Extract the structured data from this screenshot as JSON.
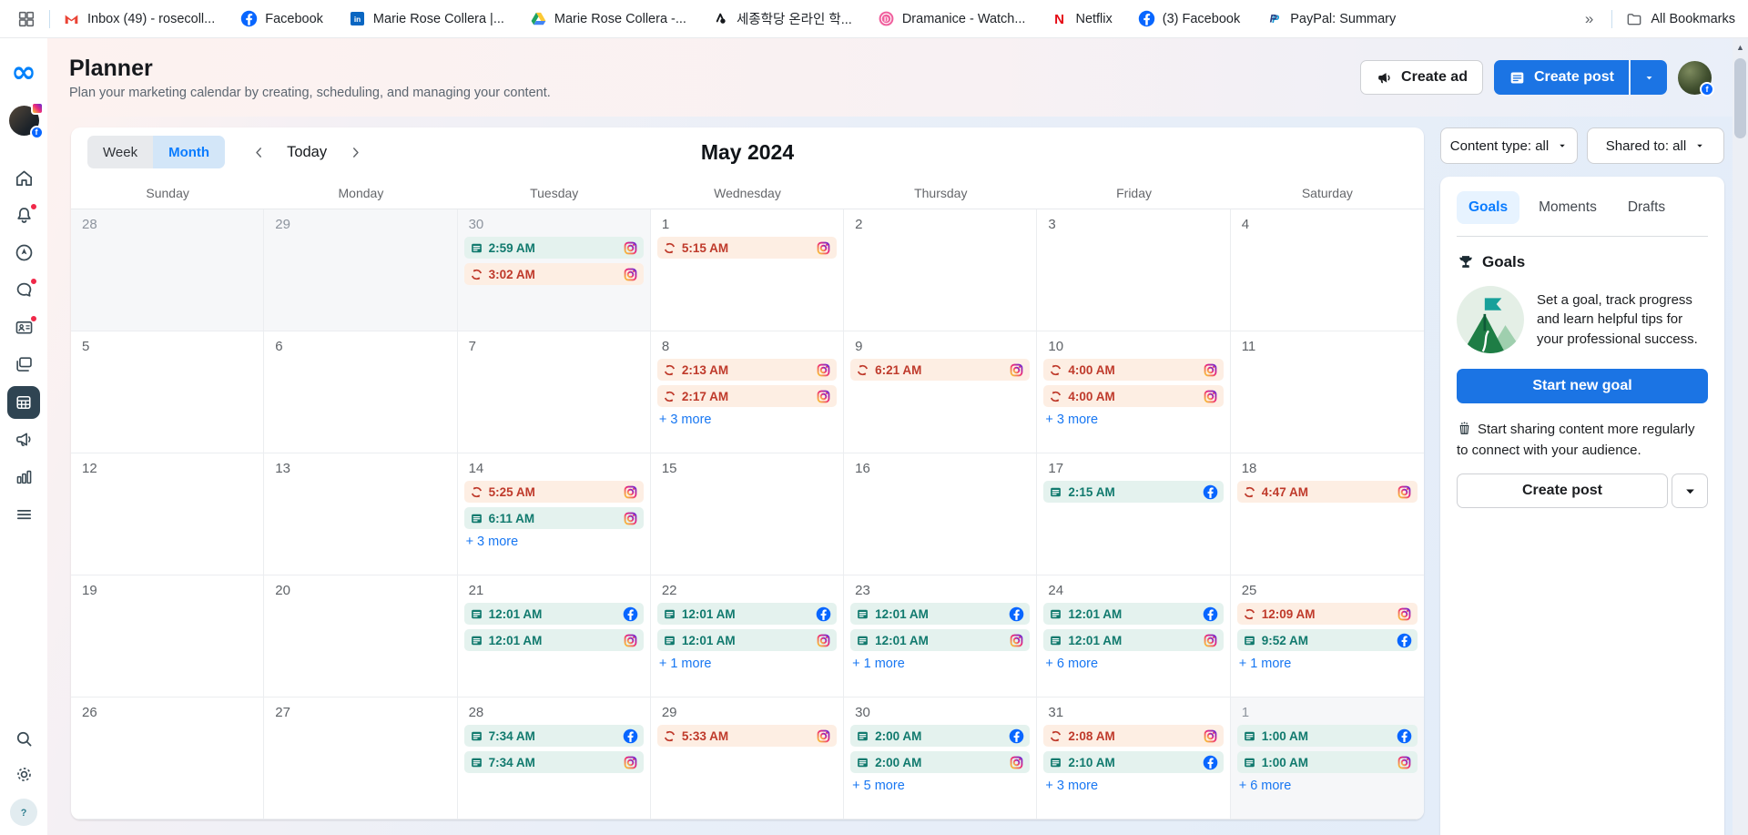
{
  "browser": {
    "bookmarks": [
      {
        "icon": "gmail",
        "label": "Inbox (49) - rosecoll..."
      },
      {
        "icon": "facebook",
        "label": "Facebook"
      },
      {
        "icon": "linkedin",
        "label": "Marie Rose Collera |..."
      },
      {
        "icon": "drive",
        "label": "Marie Rose Collera -..."
      },
      {
        "icon": "sejong",
        "label": "세종학당 온라인 학..."
      },
      {
        "icon": "dramanice",
        "label": "Dramanice - Watch..."
      },
      {
        "icon": "netflix",
        "label": "Netflix"
      },
      {
        "icon": "facebook",
        "label": "(3) Facebook"
      },
      {
        "icon": "paypal",
        "label": "PayPal: Summary"
      }
    ],
    "overflow_chevron": "»",
    "all_bookmarks_label": "All Bookmarks"
  },
  "sidebar": {
    "nav_icons": [
      {
        "icon": "home"
      },
      {
        "icon": "notifications",
        "badge": true
      },
      {
        "icon": "boost"
      },
      {
        "icon": "inbox-chat",
        "badge": true
      },
      {
        "icon": "leads",
        "badge": true
      },
      {
        "icon": "content"
      },
      {
        "icon": "planner",
        "active": true
      },
      {
        "icon": "ads"
      },
      {
        "icon": "insights"
      },
      {
        "icon": "all-tools"
      }
    ],
    "bottom_icons": [
      {
        "icon": "search"
      },
      {
        "icon": "settings"
      },
      {
        "icon": "help"
      }
    ]
  },
  "header": {
    "title": "Planner",
    "subtitle": "Plan your marketing calendar by creating, scheduling, and managing your content.",
    "create_ad_label": "Create ad",
    "create_post_label": "Create post"
  },
  "toolbar": {
    "week_label": "Week",
    "month_label": "Month",
    "today_label": "Today",
    "month_title": "May 2024",
    "content_type_filter": "Content type: all",
    "shared_to_filter": "Shared to: all"
  },
  "calendar": {
    "day_headers": [
      "Sunday",
      "Monday",
      "Tuesday",
      "Wednesday",
      "Thursday",
      "Friday",
      "Saturday"
    ],
    "weeks": [
      [
        {
          "date": "28",
          "out": true
        },
        {
          "date": "29",
          "out": true
        },
        {
          "date": "30",
          "out": true,
          "events": [
            {
              "time": "2:59 AM",
              "status": "published",
              "platform": "instagram"
            },
            {
              "time": "3:02 AM",
              "status": "scheduled",
              "platform": "instagram"
            }
          ]
        },
        {
          "date": "1",
          "events": [
            {
              "time": "5:15 AM",
              "status": "scheduled",
              "platform": "instagram"
            }
          ]
        },
        {
          "date": "2"
        },
        {
          "date": "3"
        },
        {
          "date": "4"
        }
      ],
      [
        {
          "date": "5"
        },
        {
          "date": "6"
        },
        {
          "date": "7"
        },
        {
          "date": "8",
          "events": [
            {
              "time": "2:13 AM",
              "status": "scheduled",
              "platform": "instagram"
            },
            {
              "time": "2:17 AM",
              "status": "scheduled",
              "platform": "instagram"
            }
          ],
          "more": "+ 3 more"
        },
        {
          "date": "9",
          "events": [
            {
              "time": "6:21 AM",
              "status": "scheduled",
              "platform": "instagram"
            }
          ]
        },
        {
          "date": "10",
          "events": [
            {
              "time": "4:00 AM",
              "status": "scheduled",
              "platform": "instagram"
            },
            {
              "time": "4:00 AM",
              "status": "scheduled",
              "platform": "instagram"
            }
          ],
          "more": "+ 3 more"
        },
        {
          "date": "11"
        }
      ],
      [
        {
          "date": "12"
        },
        {
          "date": "13"
        },
        {
          "date": "14",
          "events": [
            {
              "time": "5:25 AM",
              "status": "scheduled",
              "platform": "instagram"
            },
            {
              "time": "6:11 AM",
              "status": "published",
              "platform": "instagram"
            }
          ],
          "more": "+ 3 more"
        },
        {
          "date": "15"
        },
        {
          "date": "16"
        },
        {
          "date": "17",
          "events": [
            {
              "time": "2:15 AM",
              "status": "published",
              "platform": "facebook"
            }
          ]
        },
        {
          "date": "18",
          "events": [
            {
              "time": "4:47 AM",
              "status": "scheduled",
              "platform": "instagram"
            }
          ]
        }
      ],
      [
        {
          "date": "19"
        },
        {
          "date": "20"
        },
        {
          "date": "21",
          "events": [
            {
              "time": "12:01 AM",
              "status": "published",
              "platform": "facebook"
            },
            {
              "time": "12:01 AM",
              "status": "published",
              "platform": "instagram"
            }
          ]
        },
        {
          "date": "22",
          "events": [
            {
              "time": "12:01 AM",
              "status": "published",
              "platform": "facebook"
            },
            {
              "time": "12:01 AM",
              "status": "published",
              "platform": "instagram"
            }
          ],
          "more": "+ 1 more"
        },
        {
          "date": "23",
          "events": [
            {
              "time": "12:01 AM",
              "status": "published",
              "platform": "facebook"
            },
            {
              "time": "12:01 AM",
              "status": "published",
              "platform": "instagram"
            }
          ],
          "more": "+ 1 more"
        },
        {
          "date": "24",
          "events": [
            {
              "time": "12:01 AM",
              "status": "published",
              "platform": "facebook"
            },
            {
              "time": "12:01 AM",
              "status": "published",
              "platform": "instagram"
            }
          ],
          "more": "+ 6 more"
        },
        {
          "date": "25",
          "events": [
            {
              "time": "12:09 AM",
              "status": "scheduled",
              "platform": "instagram"
            },
            {
              "time": "9:52 AM",
              "status": "published",
              "platform": "facebook"
            }
          ],
          "more": "+ 1 more"
        }
      ],
      [
        {
          "date": "26"
        },
        {
          "date": "27"
        },
        {
          "date": "28",
          "events": [
            {
              "time": "7:34 AM",
              "status": "published",
              "platform": "facebook"
            },
            {
              "time": "7:34 AM",
              "status": "published",
              "platform": "instagram"
            }
          ]
        },
        {
          "date": "29",
          "events": [
            {
              "time": "5:33 AM",
              "status": "scheduled",
              "platform": "instagram"
            }
          ]
        },
        {
          "date": "30",
          "events": [
            {
              "time": "2:00 AM",
              "status": "published",
              "platform": "facebook"
            },
            {
              "time": "2:00 AM",
              "status": "published",
              "platform": "instagram"
            }
          ],
          "more": "+ 5 more"
        },
        {
          "date": "31",
          "events": [
            {
              "time": "2:08 AM",
              "status": "scheduled",
              "platform": "instagram"
            },
            {
              "time": "2:10 AM",
              "status": "published",
              "platform": "facebook"
            }
          ],
          "more": "+ 3 more"
        },
        {
          "date": "1",
          "out": true,
          "events": [
            {
              "time": "1:00 AM",
              "status": "published",
              "platform": "facebook"
            },
            {
              "time": "1:00 AM",
              "status": "published",
              "platform": "instagram"
            }
          ],
          "more": "+ 6 more"
        }
      ]
    ]
  },
  "right_panel": {
    "tabs": [
      {
        "label": "Goals",
        "active": true
      },
      {
        "label": "Moments"
      },
      {
        "label": "Drafts"
      }
    ],
    "goals_heading": "Goals",
    "goal_text": "Set a goal, track progress and learn helpful tips for your professional success.",
    "start_new_goal_label": "Start new goal",
    "share_prompt": "Start sharing content more regularly to connect with your audience.",
    "create_post_label": "Create post"
  },
  "colors": {
    "primary_blue": "#1b74e4",
    "link_blue": "#1877f2",
    "published_bg": "#e4f2ee",
    "published_text": "#117a6e",
    "scheduled_bg": "#fdeee3",
    "scheduled_text": "#bf3a2b",
    "active_nav_bg": "#2f4452",
    "meta_logo_blue": "#0081fb"
  }
}
